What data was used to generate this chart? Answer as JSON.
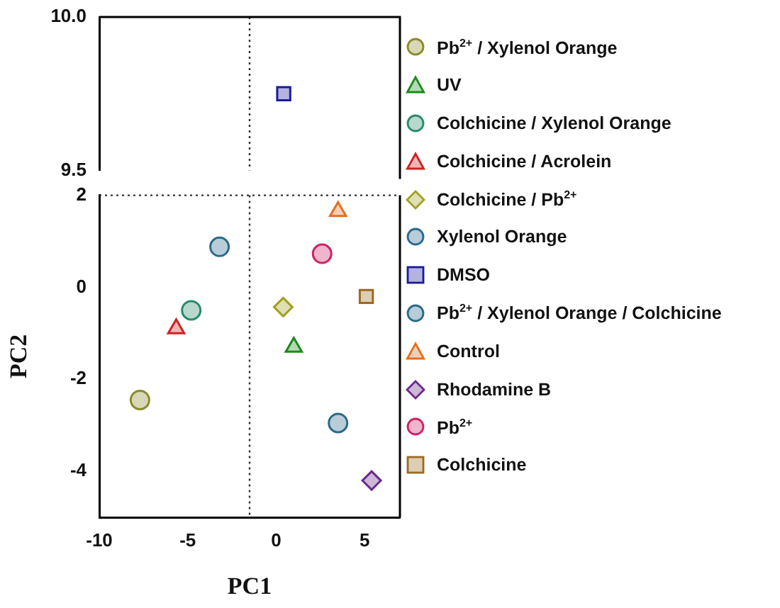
{
  "chart_data": [
    {
      "type": "scatter",
      "xlim": [
        -10,
        7
      ],
      "ylim": [
        9.5,
        10
      ],
      "yticks": [
        {
          "value": 9.5,
          "label": "9.5"
        },
        {
          "value": 10,
          "label": "10.0"
        }
      ],
      "tick_labels": "y",
      "grid": false,
      "legend": false,
      "ref_lines": [
        {
          "axis": "x",
          "value": -1.5,
          "label": null,
          "line_style": "dotted",
          "color": "#333333"
        }
      ],
      "series": [
        {
          "color": "#1a1a9a",
          "marker": "square",
          "x": [
            0.43
          ],
          "values": [
            9.75
          ]
        }
      ]
    },
    {
      "type": "scatter",
      "xlim": [
        -10,
        7
      ],
      "ylim": [
        -5,
        2
      ],
      "xticks": [
        -10,
        -5,
        0,
        5
      ],
      "yticks": [
        -4,
        -2,
        0,
        2
      ],
      "xlabel": "PC1",
      "ylabel": "PC2",
      "grid": false,
      "legend": "right",
      "ref_lines": [
        {
          "axis": "x",
          "value": -1.5,
          "label": null,
          "line_style": "dotted",
          "color": "#333333"
        },
        {
          "axis": "y",
          "value": 2,
          "label": null,
          "line_style": "dotted",
          "color": "#333333"
        }
      ],
      "series": [
        {
          "name": "Pb$^{2+}$ / Xylenol Orange",
          "color": "#8a8a2a",
          "marker": "circle",
          "x": [
            -7.7
          ],
          "values": [
            -2.45
          ]
        },
        {
          "name": "UV",
          "color": "#1a8a1a",
          "marker": "triangle",
          "x": [
            1.0
          ],
          "values": [
            -1.3
          ]
        },
        {
          "name": "Colchicine / Xylenol Orange",
          "color": "#2a8a6a",
          "marker": "circle",
          "x": [
            -4.8
          ],
          "values": [
            -0.5
          ]
        },
        {
          "name": "Colchicine / Acrolein",
          "color": "#cc2222",
          "marker": "triangle",
          "x": [
            -5.65
          ],
          "values": [
            -0.9
          ]
        },
        {
          "name": "Colchicine / Pb$^{2+}$",
          "color": "#a0a020",
          "marker": "diamond",
          "x": [
            0.4
          ],
          "values": [
            -0.43
          ]
        },
        {
          "name": "Xylenol Orange",
          "color": "#2a6a8a",
          "marker": "circle",
          "x": [
            3.5
          ],
          "values": [
            -2.95
          ]
        },
        {
          "name": "DMSO",
          "color": "#1a1a9a",
          "marker": "square"
        },
        {
          "name": "Pb$^{2+}$ / Xylenol Orange / Colchicine",
          "color": "#2a6a8a",
          "marker": "circle",
          "x": [
            -3.2
          ],
          "values": [
            0.88
          ]
        },
        {
          "name": "Control",
          "color": "#e07020",
          "marker": "triangle",
          "x": [
            3.5
          ],
          "values": [
            1.65
          ]
        },
        {
          "name": "Rhodamine B",
          "color": "#6a2a8a",
          "marker": "diamond",
          "x": [
            5.4
          ],
          "values": [
            -4.2
          ]
        },
        {
          "name": "Pb$^{2+}$",
          "color": "#cc2266",
          "marker": "circle",
          "x": [
            2.6
          ],
          "values": [
            0.73
          ]
        },
        {
          "name": "Colchicine",
          "color": "#9a6a20",
          "marker": "square",
          "x": [
            5.1
          ],
          "values": [
            -0.2
          ]
        }
      ]
    }
  ]
}
